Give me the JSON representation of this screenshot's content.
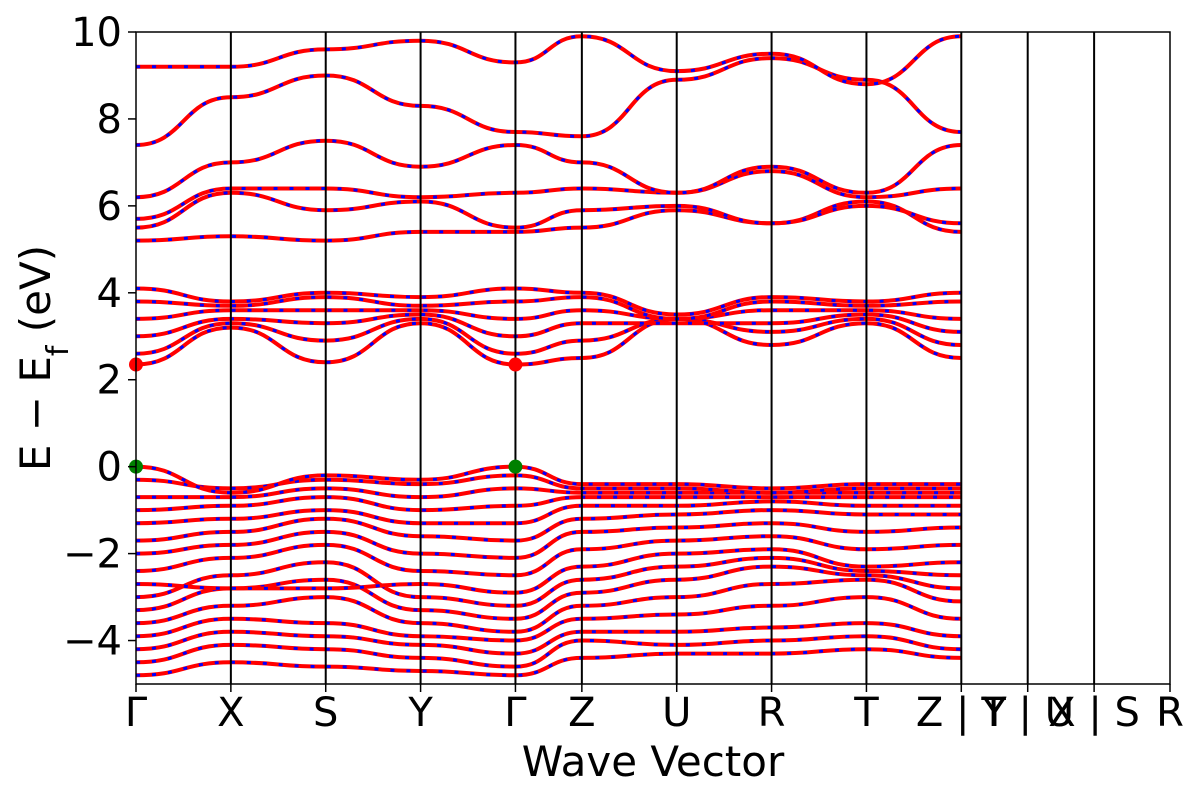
{
  "chart_data": {
    "type": "line",
    "xlabel": "Wave Vector",
    "ylabel": "E − E_f (eV)",
    "ylabel_parts": {
      "main": "E  −  E",
      "sub": "f",
      "unit": " (eV)"
    },
    "ylim": [
      -5,
      10
    ],
    "yticks": [
      -4,
      -2,
      0,
      2,
      4,
      6,
      8,
      10
    ],
    "ytick_labels": [
      "−4",
      "−2",
      "0",
      "2",
      "4",
      "6",
      "8",
      "10"
    ],
    "x_range": [
      0,
      10.9
    ],
    "kpoints": [
      {
        "label": "Γ",
        "x": 0
      },
      {
        "label": "X",
        "x": 1.0
      },
      {
        "label": "S",
        "x": 2.0
      },
      {
        "label": "Y",
        "x": 3.0
      },
      {
        "label": "Γ",
        "x": 4.0
      },
      {
        "label": "Z",
        "x": 4.7
      },
      {
        "label": "U",
        "x": 5.7
      },
      {
        "label": "R",
        "x": 6.7
      },
      {
        "label": "T",
        "x": 7.7
      },
      {
        "label": "Z | Y",
        "x": 8.7
      },
      {
        "label": "T | U",
        "x": 9.4
      },
      {
        "label": "X | S",
        "x": 10.1
      },
      {
        "label": "R",
        "x": 10.9
      }
    ],
    "grid": false,
    "legend": "none",
    "colors": {
      "band": "#ff0000",
      "band_overlay": "#0000ff",
      "vbm_marker": "#008000",
      "cbm_marker": "#ff0000",
      "kline": "#000000"
    },
    "markers": [
      {
        "name": "VBM",
        "points": [
          [
            0,
            0.0
          ],
          [
            4.0,
            0.0
          ]
        ],
        "color": "#008000"
      },
      {
        "name": "CBM",
        "points": [
          [
            0,
            2.35
          ],
          [
            4.0,
            2.35
          ]
        ],
        "color": "#ff0000"
      }
    ],
    "series": [
      {
        "values": [
          [
            0,
            -4.8
          ],
          [
            1,
            -4.5
          ],
          [
            2,
            -4.6
          ],
          [
            3,
            -4.7
          ],
          [
            4,
            -4.8
          ],
          [
            4.7,
            -4.4
          ],
          [
            5.7,
            -4.3
          ],
          [
            6.7,
            -4.3
          ],
          [
            7.7,
            -4.2
          ],
          [
            8.7,
            -4.4
          ]
        ]
      },
      {
        "values": [
          [
            0,
            -4.5
          ],
          [
            1,
            -4.1
          ],
          [
            2,
            -4.2
          ],
          [
            3,
            -4.4
          ],
          [
            4,
            -4.6
          ],
          [
            4.7,
            -4.0
          ],
          [
            5.7,
            -4.1
          ],
          [
            6.7,
            -4.0
          ],
          [
            7.7,
            -3.9
          ],
          [
            8.7,
            -4.2
          ]
        ]
      },
      {
        "values": [
          [
            0,
            -4.2
          ],
          [
            1,
            -3.8
          ],
          [
            2,
            -3.9
          ],
          [
            3,
            -4.1
          ],
          [
            4,
            -4.3
          ],
          [
            4.7,
            -3.8
          ],
          [
            5.7,
            -3.8
          ],
          [
            6.7,
            -3.7
          ],
          [
            7.7,
            -3.6
          ],
          [
            8.7,
            -3.9
          ]
        ]
      },
      {
        "values": [
          [
            0,
            -3.9
          ],
          [
            1,
            -3.5
          ],
          [
            2,
            -3.6
          ],
          [
            3,
            -3.9
          ],
          [
            4,
            -4.0
          ],
          [
            4.7,
            -3.5
          ],
          [
            5.7,
            -3.4
          ],
          [
            6.7,
            -3.2
          ],
          [
            7.7,
            -3.0
          ],
          [
            8.7,
            -3.5
          ]
        ]
      },
      {
        "values": [
          [
            0,
            -3.6
          ],
          [
            1,
            -3.2
          ],
          [
            2,
            -3.0
          ],
          [
            3,
            -3.6
          ],
          [
            4,
            -3.8
          ],
          [
            4.7,
            -3.2
          ],
          [
            5.7,
            -3.0
          ],
          [
            6.7,
            -2.7
          ],
          [
            7.7,
            -2.6
          ],
          [
            8.7,
            -3.1
          ]
        ]
      },
      {
        "values": [
          [
            0,
            -3.3
          ],
          [
            1,
            -2.8
          ],
          [
            2,
            -2.6
          ],
          [
            3,
            -3.3
          ],
          [
            4,
            -3.5
          ],
          [
            4.7,
            -2.9
          ],
          [
            5.7,
            -2.6
          ],
          [
            6.7,
            -2.3
          ],
          [
            7.7,
            -2.5
          ],
          [
            8.7,
            -2.8
          ]
        ]
      },
      {
        "values": [
          [
            0,
            -3.0
          ],
          [
            1,
            -2.5
          ],
          [
            2,
            -2.2
          ],
          [
            3,
            -3.0
          ],
          [
            4,
            -3.2
          ],
          [
            4.7,
            -2.6
          ],
          [
            5.7,
            -2.3
          ],
          [
            6.7,
            -2.1
          ],
          [
            7.7,
            -2.4
          ],
          [
            8.7,
            -2.5
          ]
        ]
      },
      {
        "values": [
          [
            0,
            -2.7
          ],
          [
            1,
            -2.8
          ],
          [
            2,
            -2.8
          ],
          [
            3,
            -2.7
          ],
          [
            4,
            -2.9
          ],
          [
            4.7,
            -2.3
          ],
          [
            5.7,
            -2.0
          ],
          [
            6.7,
            -1.9
          ],
          [
            7.7,
            -2.3
          ],
          [
            8.7,
            -2.2
          ]
        ]
      },
      {
        "values": [
          [
            0,
            -2.4
          ],
          [
            1,
            -2.1
          ],
          [
            2,
            -1.8
          ],
          [
            3,
            -2.4
          ],
          [
            4,
            -2.5
          ],
          [
            4.7,
            -1.9
          ],
          [
            5.7,
            -1.7
          ],
          [
            6.7,
            -1.6
          ],
          [
            7.7,
            -1.9
          ],
          [
            8.7,
            -1.8
          ]
        ]
      },
      {
        "values": [
          [
            0,
            -2.0
          ],
          [
            1,
            -1.8
          ],
          [
            2,
            -1.5
          ],
          [
            3,
            -2.0
          ],
          [
            4,
            -2.1
          ],
          [
            4.7,
            -1.5
          ],
          [
            5.7,
            -1.4
          ],
          [
            6.7,
            -1.3
          ],
          [
            7.7,
            -1.5
          ],
          [
            8.7,
            -1.4
          ]
        ]
      },
      {
        "values": [
          [
            0,
            -1.7
          ],
          [
            1,
            -1.5
          ],
          [
            2,
            -1.2
          ],
          [
            3,
            -1.6
          ],
          [
            4,
            -1.7
          ],
          [
            4.7,
            -1.2
          ],
          [
            5.7,
            -1.1
          ],
          [
            6.7,
            -1.0
          ],
          [
            7.7,
            -1.1
          ],
          [
            8.7,
            -1.1
          ]
        ]
      },
      {
        "values": [
          [
            0,
            -1.3
          ],
          [
            1,
            -1.2
          ],
          [
            2,
            -1.0
          ],
          [
            3,
            -1.3
          ],
          [
            4,
            -1.3
          ],
          [
            4.7,
            -0.9
          ],
          [
            5.7,
            -0.9
          ],
          [
            6.7,
            -0.8
          ],
          [
            7.7,
            -0.9
          ],
          [
            8.7,
            -0.9
          ]
        ]
      },
      {
        "values": [
          [
            0,
            -1.0
          ],
          [
            1,
            -0.9
          ],
          [
            2,
            -0.7
          ],
          [
            3,
            -1.0
          ],
          [
            4,
            -0.9
          ],
          [
            4.7,
            -0.7
          ],
          [
            5.7,
            -0.7
          ],
          [
            6.7,
            -0.7
          ],
          [
            7.7,
            -0.7
          ],
          [
            8.7,
            -0.7
          ]
        ]
      },
      {
        "values": [
          [
            0,
            -0.7
          ],
          [
            1,
            -0.7
          ],
          [
            2,
            -0.5
          ],
          [
            3,
            -0.7
          ],
          [
            4,
            -0.5
          ],
          [
            4.7,
            -0.6
          ],
          [
            5.7,
            -0.6
          ],
          [
            6.7,
            -0.6
          ],
          [
            7.7,
            -0.6
          ],
          [
            8.7,
            -0.6
          ]
        ]
      },
      {
        "values": [
          [
            0,
            -0.3
          ],
          [
            1,
            -0.5
          ],
          [
            2,
            -0.3
          ],
          [
            3,
            -0.4
          ],
          [
            4,
            -0.2
          ],
          [
            4.7,
            -0.5
          ],
          [
            5.7,
            -0.5
          ],
          [
            6.7,
            -0.6
          ],
          [
            7.7,
            -0.5
          ],
          [
            8.7,
            -0.5
          ]
        ]
      },
      {
        "values": [
          [
            0,
            0.0
          ],
          [
            1,
            -0.6
          ],
          [
            2,
            -0.2
          ],
          [
            3,
            -0.3
          ],
          [
            4,
            0.0
          ],
          [
            4.7,
            -0.4
          ],
          [
            5.7,
            -0.4
          ],
          [
            6.7,
            -0.5
          ],
          [
            7.7,
            -0.4
          ],
          [
            8.7,
            -0.4
          ]
        ]
      },
      {
        "values": [
          [
            0,
            2.35
          ],
          [
            1,
            3.2
          ],
          [
            2,
            2.4
          ],
          [
            3,
            3.3
          ],
          [
            4,
            2.35
          ],
          [
            4.7,
            2.5
          ],
          [
            5.7,
            3.4
          ],
          [
            6.7,
            2.8
          ],
          [
            7.7,
            3.3
          ],
          [
            8.7,
            2.5
          ]
        ]
      },
      {
        "values": [
          [
            0,
            2.6
          ],
          [
            1,
            3.3
          ],
          [
            2,
            2.9
          ],
          [
            3,
            3.4
          ],
          [
            4,
            2.6
          ],
          [
            4.7,
            2.9
          ],
          [
            5.7,
            3.4
          ],
          [
            6.7,
            3.1
          ],
          [
            7.7,
            3.4
          ],
          [
            8.7,
            2.8
          ]
        ]
      },
      {
        "values": [
          [
            0,
            3.0
          ],
          [
            1,
            3.4
          ],
          [
            2,
            3.3
          ],
          [
            3,
            3.5
          ],
          [
            4,
            3.0
          ],
          [
            4.7,
            3.3
          ],
          [
            5.7,
            3.3
          ],
          [
            6.7,
            3.3
          ],
          [
            7.7,
            3.5
          ],
          [
            8.7,
            3.1
          ]
        ]
      },
      {
        "values": [
          [
            0,
            3.4
          ],
          [
            1,
            3.6
          ],
          [
            2,
            3.6
          ],
          [
            3,
            3.6
          ],
          [
            4,
            3.4
          ],
          [
            4.7,
            3.6
          ],
          [
            5.7,
            3.4
          ],
          [
            6.7,
            3.6
          ],
          [
            7.7,
            3.6
          ],
          [
            8.7,
            3.4
          ]
        ]
      },
      {
        "values": [
          [
            0,
            3.8
          ],
          [
            1,
            3.7
          ],
          [
            2,
            3.9
          ],
          [
            3,
            3.7
          ],
          [
            4,
            3.8
          ],
          [
            4.7,
            3.9
          ],
          [
            5.7,
            3.4
          ],
          [
            6.7,
            3.8
          ],
          [
            7.7,
            3.7
          ],
          [
            8.7,
            3.8
          ]
        ]
      },
      {
        "values": [
          [
            0,
            4.1
          ],
          [
            1,
            3.8
          ],
          [
            2,
            4.0
          ],
          [
            3,
            3.9
          ],
          [
            4,
            4.1
          ],
          [
            4.7,
            4.0
          ],
          [
            5.7,
            3.5
          ],
          [
            6.7,
            3.9
          ],
          [
            7.7,
            3.8
          ],
          [
            8.7,
            4.0
          ]
        ]
      },
      {
        "values": [
          [
            0,
            5.2
          ],
          [
            1,
            5.3
          ],
          [
            2,
            5.2
          ],
          [
            3,
            5.4
          ],
          [
            4,
            5.4
          ],
          [
            4.7,
            5.5
          ],
          [
            5.7,
            5.9
          ],
          [
            6.7,
            5.6
          ],
          [
            7.7,
            6.1
          ],
          [
            8.7,
            5.4
          ]
        ]
      },
      {
        "values": [
          [
            0,
            5.5
          ],
          [
            1,
            6.3
          ],
          [
            2,
            5.9
          ],
          [
            3,
            6.1
          ],
          [
            4,
            5.5
          ],
          [
            4.7,
            5.9
          ],
          [
            5.7,
            6.0
          ],
          [
            6.7,
            5.6
          ],
          [
            7.7,
            6.0
          ],
          [
            8.7,
            5.6
          ]
        ]
      },
      {
        "values": [
          [
            0,
            5.7
          ],
          [
            1,
            6.4
          ],
          [
            2,
            6.4
          ],
          [
            3,
            6.2
          ],
          [
            4,
            6.3
          ],
          [
            4.7,
            6.4
          ],
          [
            5.7,
            6.3
          ],
          [
            6.7,
            6.8
          ],
          [
            7.7,
            6.2
          ],
          [
            8.7,
            6.4
          ]
        ]
      },
      {
        "values": [
          [
            0,
            6.2
          ],
          [
            1,
            7.0
          ],
          [
            2,
            7.5
          ],
          [
            3,
            6.9
          ],
          [
            4,
            7.4
          ],
          [
            4.7,
            7.0
          ],
          [
            5.7,
            6.3
          ],
          [
            6.7,
            6.9
          ],
          [
            7.7,
            6.3
          ],
          [
            8.7,
            7.4
          ]
        ]
      },
      {
        "values": [
          [
            0,
            7.4
          ],
          [
            1,
            8.5
          ],
          [
            2,
            9.0
          ],
          [
            3,
            8.3
          ],
          [
            4,
            7.7
          ],
          [
            4.7,
            7.6
          ],
          [
            5.7,
            8.9
          ],
          [
            6.7,
            9.4
          ],
          [
            7.7,
            8.9
          ],
          [
            8.7,
            7.7
          ]
        ]
      },
      {
        "values": [
          [
            0,
            9.2
          ],
          [
            1,
            9.2
          ],
          [
            2,
            9.6
          ],
          [
            3,
            9.8
          ],
          [
            4,
            9.3
          ],
          [
            4.7,
            9.9
          ],
          [
            5.7,
            9.1
          ],
          [
            6.7,
            9.5
          ],
          [
            7.7,
            8.8
          ],
          [
            8.7,
            9.9
          ]
        ]
      }
    ]
  }
}
